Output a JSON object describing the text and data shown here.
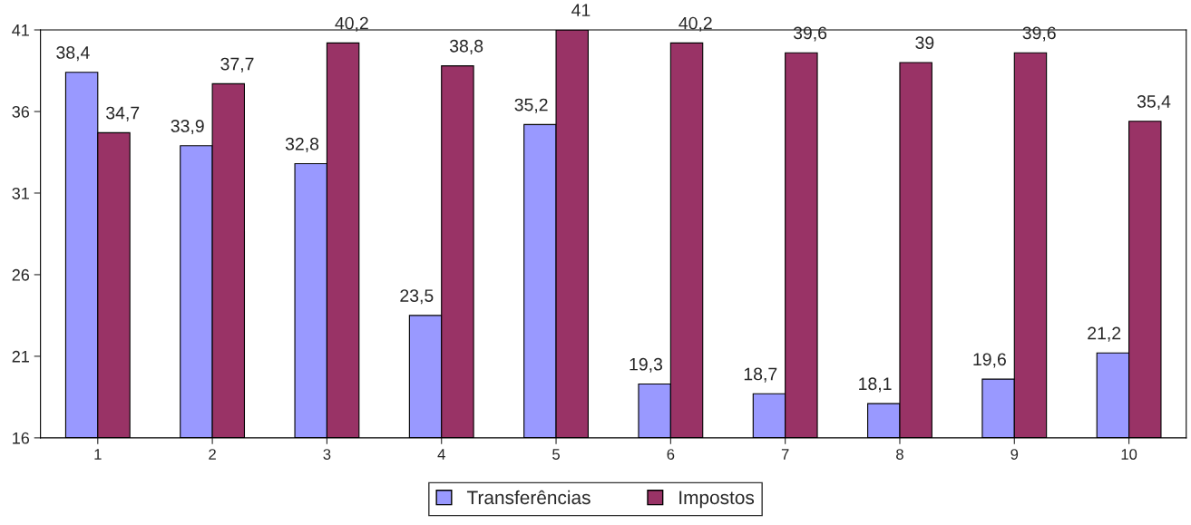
{
  "chart_data": {
    "type": "bar",
    "categories": [
      "1",
      "2",
      "3",
      "4",
      "5",
      "6",
      "7",
      "8",
      "9",
      "10"
    ],
    "series": [
      {
        "name": "Transferências",
        "color": "#9999ff",
        "values": [
          38.4,
          33.9,
          32.8,
          23.5,
          35.2,
          19.3,
          18.7,
          18.1,
          19.6,
          21.2
        ],
        "value_labels": [
          "38,4",
          "33,9",
          "32,8",
          "23,5",
          "35,2",
          "19,3",
          "18,7",
          "18,1",
          "19,6",
          "21,2"
        ]
      },
      {
        "name": "Impostos",
        "color": "#993366",
        "values": [
          34.7,
          37.7,
          40.2,
          38.8,
          41,
          40.2,
          39.6,
          39,
          39.6,
          35.4
        ],
        "value_labels": [
          "34,7",
          "37,7",
          "40,2",
          "38,8",
          "41",
          "40,2",
          "39,6",
          "39",
          "39,6",
          "35,4"
        ]
      }
    ],
    "ylim": [
      16,
      41
    ],
    "yticks": [
      16,
      21,
      26,
      31,
      36,
      41
    ],
    "grid": false,
    "legend": "bottom"
  }
}
